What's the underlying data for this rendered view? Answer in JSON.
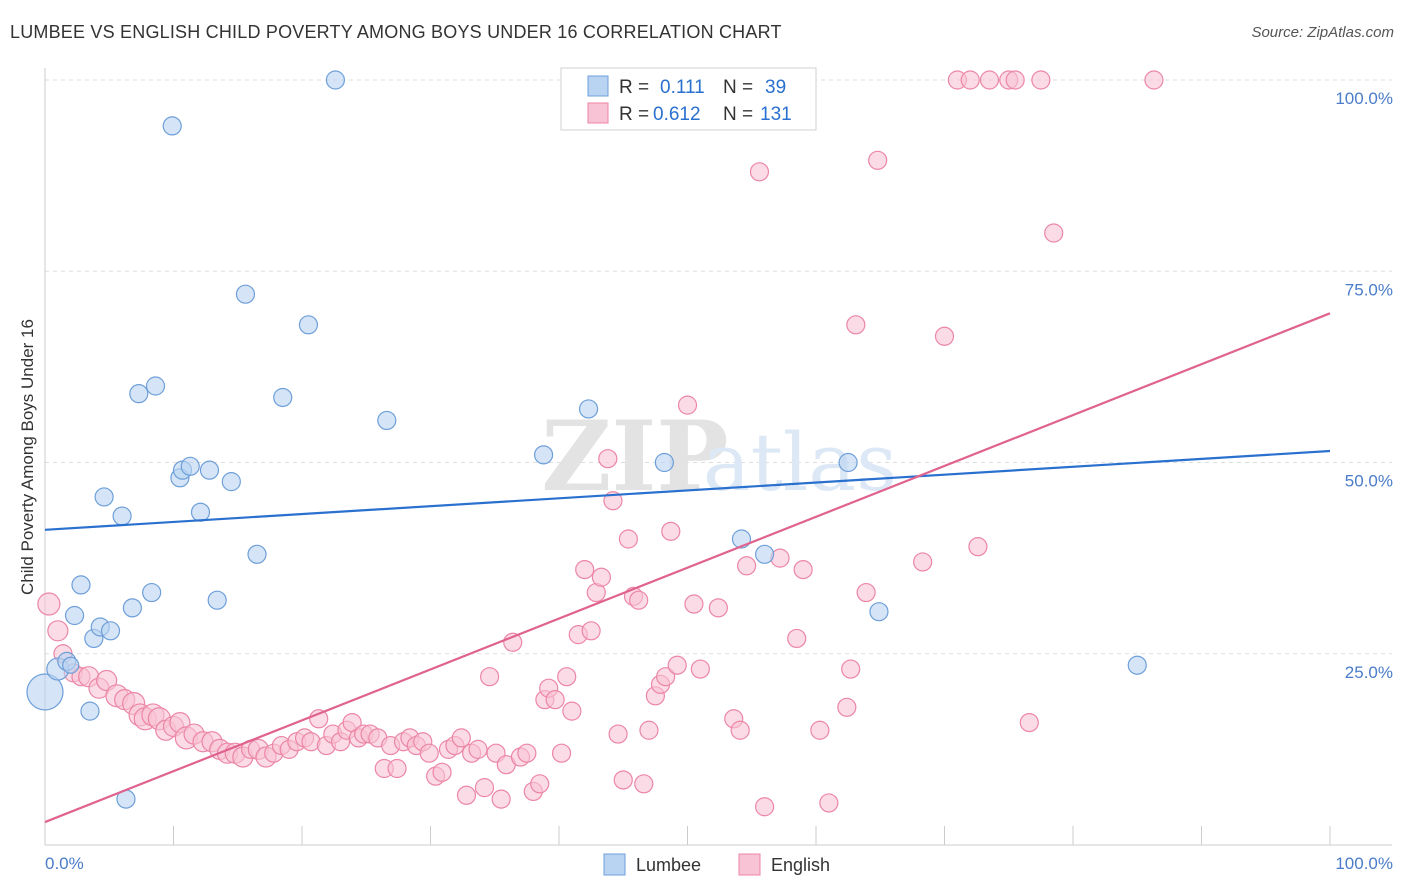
{
  "title": "LUMBEE VS ENGLISH CHILD POVERTY AMONG BOYS UNDER 16 CORRELATION CHART",
  "source": "Source: ZipAtlas.com",
  "watermark": {
    "zip": "ZIP",
    "atlas": "atlas"
  },
  "colors": {
    "lumbee_fill": "#b9d3f2",
    "lumbee_stroke": "#6e9fd9",
    "lumbee_line": "#2a70cf",
    "english_fill": "#f8c3d4",
    "english_stroke": "#ec86a6",
    "english_line": "#e0628f",
    "tick_text": "#4a7cc9",
    "grid": "#dddddd"
  },
  "legend": {
    "rows": [
      {
        "r_label": "R =",
        "r_value": "0.111",
        "n_label": "N =",
        "n_value": "39"
      },
      {
        "r_label": "R =",
        "r_value": "0.612",
        "n_label": "N =",
        "n_value": "131"
      }
    ]
  },
  "bottom_legend": [
    "Lumbee",
    "English"
  ],
  "chart_data": {
    "type": "scatter",
    "title": "LUMBEE VS ENGLISH CHILD POVERTY AMONG BOYS UNDER 16 CORRELATION CHART",
    "xlabel": "",
    "ylabel": "Child Poverty Among Boys Under 16",
    "xlim": [
      0,
      100
    ],
    "ylim": [
      0,
      100
    ],
    "x_tick_labels": [
      "0.0%",
      "100.0%"
    ],
    "y_ticks": [
      25,
      50,
      75,
      100
    ],
    "y_tick_labels": [
      "25.0%",
      "50.0%",
      "75.0%",
      "100.0%"
    ],
    "grid": true,
    "legend_position": "top-center",
    "series": [
      {
        "name": "Lumbee",
        "r": 0.111,
        "n": 39,
        "trend": {
          "x": [
            0,
            100
          ],
          "y": [
            41.2,
            51.5
          ]
        },
        "points": [
          [
            0.0,
            20.0,
            18
          ],
          [
            1.0,
            23.0,
            11
          ],
          [
            1.7,
            24.0,
            9
          ],
          [
            2.0,
            23.5,
            8
          ],
          [
            2.3,
            30.0,
            9
          ],
          [
            2.8,
            34.0,
            9
          ],
          [
            3.5,
            17.5,
            9
          ],
          [
            3.8,
            27.0,
            9
          ],
          [
            4.3,
            28.5,
            9
          ],
          [
            5.1,
            28.0,
            9
          ],
          [
            4.6,
            45.5,
            9
          ],
          [
            6.0,
            43.0,
            9
          ],
          [
            6.3,
            6.0,
            9
          ],
          [
            6.8,
            31.0,
            9
          ],
          [
            7.3,
            59.0,
            9
          ],
          [
            8.3,
            33.0,
            9
          ],
          [
            8.6,
            60.0,
            9
          ],
          [
            9.9,
            94.0,
            9
          ],
          [
            10.5,
            48.0,
            9
          ],
          [
            10.7,
            49.0,
            9
          ],
          [
            11.3,
            49.5,
            9
          ],
          [
            12.1,
            43.5,
            9
          ],
          [
            12.8,
            49.0,
            9
          ],
          [
            13.4,
            32.0,
            9
          ],
          [
            14.5,
            47.5,
            9
          ],
          [
            15.6,
            72.0,
            9
          ],
          [
            16.5,
            38.0,
            9
          ],
          [
            18.5,
            58.5,
            9
          ],
          [
            20.5,
            68.0,
            9
          ],
          [
            22.6,
            100.0,
            9
          ],
          [
            26.6,
            55.5,
            9
          ],
          [
            38.8,
            51.0,
            9
          ],
          [
            42.3,
            57.0,
            9
          ],
          [
            48.2,
            50.0,
            9
          ],
          [
            54.2,
            40.0,
            9
          ],
          [
            56.0,
            38.0,
            9
          ],
          [
            62.5,
            50.0,
            9
          ],
          [
            64.9,
            30.5,
            9
          ],
          [
            85.0,
            23.5,
            9
          ]
        ]
      },
      {
        "name": "English",
        "r": 0.612,
        "n": 131,
        "trend": {
          "x": [
            0,
            100
          ],
          "y": [
            3.0,
            69.5
          ]
        },
        "points": [
          [
            0.3,
            31.5,
            11
          ],
          [
            1.0,
            28.0,
            10
          ],
          [
            1.4,
            25.0,
            9
          ],
          [
            2.2,
            22.5,
            9
          ],
          [
            2.8,
            22.0,
            9
          ],
          [
            3.4,
            22.0,
            10
          ],
          [
            4.2,
            20.5,
            10
          ],
          [
            4.8,
            21.5,
            10
          ],
          [
            5.6,
            19.5,
            11
          ],
          [
            6.2,
            19.0,
            10
          ],
          [
            6.9,
            18.5,
            11
          ],
          [
            7.4,
            17.0,
            11
          ],
          [
            7.8,
            16.5,
            11
          ],
          [
            8.4,
            17.0,
            11
          ],
          [
            8.9,
            16.5,
            11
          ],
          [
            9.4,
            15.0,
            10
          ],
          [
            10.0,
            15.5,
            10
          ],
          [
            10.5,
            16.0,
            10
          ],
          [
            11.0,
            14.0,
            11
          ],
          [
            11.6,
            14.5,
            10
          ],
          [
            12.3,
            13.5,
            10
          ],
          [
            13.0,
            13.5,
            10
          ],
          [
            13.6,
            12.5,
            10
          ],
          [
            14.2,
            12.0,
            10
          ],
          [
            14.8,
            12.0,
            10
          ],
          [
            15.4,
            11.5,
            10
          ],
          [
            16.0,
            12.5,
            9
          ],
          [
            16.6,
            12.5,
            10
          ],
          [
            17.2,
            11.5,
            10
          ],
          [
            17.8,
            12.0,
            9
          ],
          [
            18.4,
            13.0,
            9
          ],
          [
            19.0,
            12.5,
            9
          ],
          [
            19.6,
            13.5,
            9
          ],
          [
            20.2,
            14.0,
            9
          ],
          [
            20.7,
            13.5,
            9
          ],
          [
            21.3,
            16.5,
            9
          ],
          [
            21.9,
            13.0,
            9
          ],
          [
            22.4,
            14.5,
            9
          ],
          [
            23.0,
            13.5,
            9
          ],
          [
            23.5,
            15.0,
            9
          ],
          [
            23.9,
            16.0,
            9
          ],
          [
            24.4,
            14.0,
            9
          ],
          [
            24.8,
            14.5,
            9
          ],
          [
            25.3,
            14.5,
            9
          ],
          [
            25.9,
            14.0,
            9
          ],
          [
            26.4,
            10.0,
            9
          ],
          [
            26.9,
            13.0,
            9
          ],
          [
            27.4,
            10.0,
            9
          ],
          [
            27.9,
            13.5,
            9
          ],
          [
            28.4,
            14.0,
            9
          ],
          [
            28.9,
            13.0,
            9
          ],
          [
            29.4,
            13.5,
            9
          ],
          [
            29.9,
            12.0,
            9
          ],
          [
            30.4,
            9.0,
            9
          ],
          [
            30.9,
            9.5,
            9
          ],
          [
            31.4,
            12.5,
            9
          ],
          [
            31.9,
            13.0,
            9
          ],
          [
            32.4,
            14.0,
            9
          ],
          [
            32.8,
            6.5,
            9
          ],
          [
            33.2,
            12.0,
            9
          ],
          [
            33.7,
            12.5,
            9
          ],
          [
            34.2,
            7.5,
            9
          ],
          [
            34.6,
            22.0,
            9
          ],
          [
            35.1,
            12.0,
            9
          ],
          [
            35.5,
            6.0,
            9
          ],
          [
            35.9,
            10.5,
            9
          ],
          [
            36.4,
            26.5,
            9
          ],
          [
            37.0,
            11.5,
            9
          ],
          [
            37.5,
            12.0,
            9
          ],
          [
            38.0,
            7.0,
            9
          ],
          [
            38.5,
            8.0,
            9
          ],
          [
            38.9,
            19.0,
            9
          ],
          [
            39.2,
            20.5,
            9
          ],
          [
            39.7,
            19.0,
            9
          ],
          [
            40.2,
            12.0,
            9
          ],
          [
            40.6,
            22.0,
            9
          ],
          [
            41.0,
            17.5,
            9
          ],
          [
            41.5,
            27.5,
            9
          ],
          [
            42.0,
            36.0,
            9
          ],
          [
            42.5,
            28.0,
            9
          ],
          [
            42.9,
            33.0,
            9
          ],
          [
            43.3,
            35.0,
            9
          ],
          [
            43.8,
            50.5,
            9
          ],
          [
            44.2,
            45.0,
            9
          ],
          [
            44.6,
            14.5,
            9
          ],
          [
            45.0,
            8.5,
            9
          ],
          [
            45.4,
            40.0,
            9
          ],
          [
            45.8,
            32.5,
            9
          ],
          [
            46.2,
            32.0,
            9
          ],
          [
            46.6,
            8.0,
            9
          ],
          [
            47.0,
            15.0,
            9
          ],
          [
            47.5,
            19.5,
            9
          ],
          [
            47.9,
            21.0,
            9
          ],
          [
            48.3,
            22.0,
            9
          ],
          [
            48.7,
            41.0,
            9
          ],
          [
            49.2,
            23.5,
            9
          ],
          [
            50.0,
            57.5,
            9
          ],
          [
            50.5,
            31.5,
            9
          ],
          [
            51.0,
            23.0,
            9
          ],
          [
            52.4,
            31.0,
            9
          ],
          [
            53.6,
            16.5,
            9
          ],
          [
            54.1,
            15.0,
            9
          ],
          [
            54.6,
            36.5,
            9
          ],
          [
            55.6,
            88.0,
            9
          ],
          [
            56.0,
            5.0,
            9
          ],
          [
            57.2,
            37.5,
            9
          ],
          [
            58.0,
            100.0,
            9
          ],
          [
            58.5,
            27.0,
            9
          ],
          [
            59.0,
            36.0,
            9
          ],
          [
            60.3,
            15.0,
            9
          ],
          [
            61.0,
            5.5,
            9
          ],
          [
            62.4,
            18.0,
            9
          ],
          [
            62.7,
            23.0,
            9
          ],
          [
            63.1,
            68.0,
            9
          ],
          [
            63.9,
            33.0,
            9
          ],
          [
            64.8,
            89.5,
            9
          ],
          [
            68.3,
            37.0,
            9
          ],
          [
            70.0,
            66.5,
            9
          ],
          [
            71.0,
            100.0,
            9
          ],
          [
            72.0,
            100.0,
            9
          ],
          [
            72.6,
            39.0,
            9
          ],
          [
            73.5,
            100.0,
            9
          ],
          [
            75.0,
            100.0,
            9
          ],
          [
            75.5,
            100.0,
            9
          ],
          [
            76.6,
            16.0,
            9
          ],
          [
            77.5,
            100.0,
            9
          ],
          [
            78.5,
            80.0,
            9
          ],
          [
            86.3,
            100.0,
            9
          ]
        ]
      }
    ]
  }
}
